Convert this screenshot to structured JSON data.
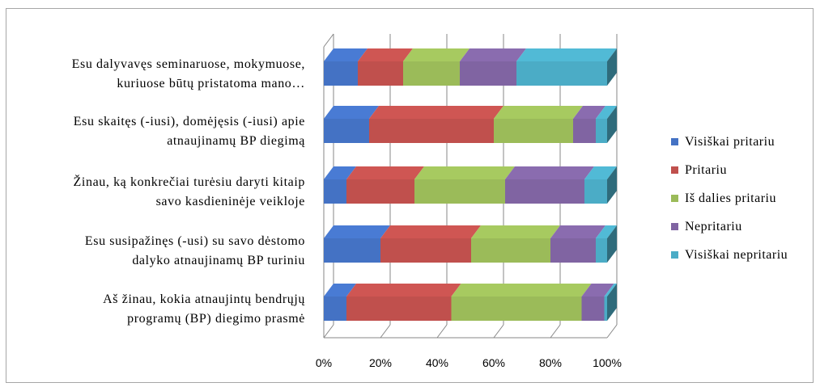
{
  "chart_data": {
    "type": "bar",
    "orientation": "horizontal",
    "stacked": "percent",
    "three_d": true,
    "categories": [
      [
        "Esu dalyvavęs seminaruose, mokymuose,",
        "kuriuose būtų pristatoma mano…"
      ],
      [
        "Esu skaitęs (-iusi), domėjęsis (-iusi) apie",
        "atnaujinamų BP diegimą"
      ],
      [
        "Žinau, ką konkrečiai turėsiu daryti kitaip",
        "savo kasdieninėje veikloje"
      ],
      [
        "Esu susipažinęs (-usi) su savo dėstomo",
        "dalyko atnaujinamų BP turiniu"
      ],
      [
        "Aš žinau, kokia atnaujintų bendrųjų",
        "programų (BP) diegimo prasmė"
      ]
    ],
    "series": [
      {
        "name": "Visiškai pritariu",
        "color": "#4472c4",
        "values": [
          12,
          16,
          8,
          20,
          8
        ]
      },
      {
        "name": "Pritariu",
        "color": "#c0504d",
        "values": [
          16,
          44,
          24,
          32,
          37
        ]
      },
      {
        "name": "Iš dalies pritariu",
        "color": "#9bbb59",
        "values": [
          20,
          28,
          32,
          28,
          46
        ]
      },
      {
        "name": "Nepritariu",
        "color": "#8064a2",
        "values": [
          20,
          8,
          28,
          16,
          8
        ]
      },
      {
        "name": "Visiškai nepritariu",
        "color": "#4bacc6",
        "values": [
          32,
          4,
          8,
          4,
          1
        ]
      }
    ],
    "x_ticks": [
      "0%",
      "20%",
      "40%",
      "60%",
      "80%",
      "100%"
    ],
    "xlim": [
      0,
      100
    ],
    "grid": true,
    "legend_position": "right"
  }
}
